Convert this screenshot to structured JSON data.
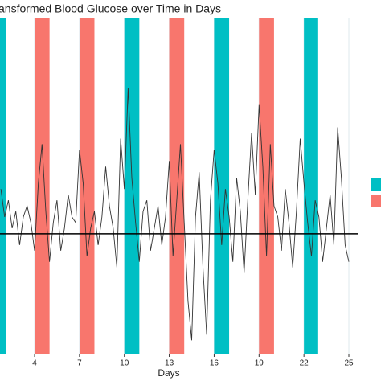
{
  "chart_data": {
    "type": "line",
    "title": "ansformed Blood Glucose over Time in Days",
    "x_label": "Days",
    "xlim": [
      1.69,
      25.59
    ],
    "ylim": [
      -2.14,
      3.86
    ],
    "xticks": [
      4,
      7,
      10,
      13,
      16,
      19,
      22,
      25
    ],
    "grid": true,
    "hline": 0,
    "bands": [
      {
        "start": 1.1,
        "end": 2.1,
        "color": "#00bfc4"
      },
      {
        "start": 4.05,
        "end": 5.0,
        "color": "#f8766d"
      },
      {
        "start": 7.05,
        "end": 8.0,
        "color": "#f8766d"
      },
      {
        "start": 10.0,
        "end": 11.0,
        "color": "#00bfc4"
      },
      {
        "start": 13.0,
        "end": 14.0,
        "color": "#f8766d"
      },
      {
        "start": 16.0,
        "end": 17.0,
        "color": "#00bfc4"
      },
      {
        "start": 19.0,
        "end": 20.0,
        "color": "#f8766d"
      },
      {
        "start": 22.0,
        "end": 22.95,
        "color": "#00bfc4"
      }
    ],
    "legend_colors": [
      "#00bfc4",
      "#f8766d"
    ],
    "series": [
      {
        "color": "#333333",
        "x": [
          1.75,
          2.0,
          2.25,
          2.5,
          2.75,
          3.0,
          3.25,
          3.5,
          3.75,
          4.0,
          4.25,
          4.5,
          4.75,
          5.0,
          5.25,
          5.5,
          5.75,
          6.0,
          6.25,
          6.5,
          6.75,
          7.0,
          7.25,
          7.5,
          7.75,
          8.0,
          8.25,
          8.5,
          8.75,
          9.0,
          9.25,
          9.5,
          9.75,
          10.0,
          10.25,
          10.5,
          10.75,
          11.0,
          11.25,
          11.5,
          11.75,
          12.0,
          12.25,
          12.5,
          12.75,
          13.0,
          13.25,
          13.5,
          13.75,
          14.0,
          14.25,
          14.5,
          14.75,
          15.0,
          15.25,
          15.5,
          15.75,
          16.0,
          16.25,
          16.5,
          16.75,
          17.0,
          17.25,
          17.5,
          17.75,
          18.0,
          18.25,
          18.5,
          18.75,
          19.0,
          19.25,
          19.5,
          19.75,
          20.0,
          20.25,
          20.5,
          20.75,
          21.0,
          21.25,
          21.5,
          21.75,
          22.0,
          22.25,
          22.5,
          22.75,
          23.0,
          23.25,
          23.5,
          23.75,
          24.0,
          24.25,
          24.5,
          24.75,
          25.0
        ],
        "values": [
          0.8,
          0.3,
          0.6,
          0.1,
          0.4,
          -0.2,
          0.3,
          0.5,
          0.2,
          -0.3,
          0.9,
          1.6,
          0.4,
          -0.5,
          0.2,
          0.6,
          -0.3,
          0.1,
          0.7,
          0.3,
          0.2,
          1.5,
          0.9,
          -0.4,
          0.1,
          0.4,
          -0.2,
          0.3,
          1.2,
          0.5,
          0.1,
          -0.6,
          1.7,
          0.8,
          2.6,
          1.0,
          0.2,
          -0.5,
          0.4,
          0.6,
          -0.3,
          0.1,
          0.5,
          -0.2,
          0.3,
          1.3,
          -0.4,
          0.6,
          1.6,
          0.2,
          -1.2,
          -1.9,
          0.3,
          1.1,
          -0.6,
          -1.8,
          0.6,
          1.5,
          0.9,
          -0.2,
          0.8,
          0.3,
          -0.5,
          1.0,
          0.4,
          -0.7,
          0.6,
          1.8,
          0.7,
          2.3,
          1.2,
          -0.4,
          1.6,
          0.5,
          0.3,
          -0.3,
          0.8,
          0.2,
          -0.6,
          0.4,
          1.7,
          0.9,
          0.2,
          -0.4,
          0.6,
          0.3,
          -0.5,
          0.1,
          0.7,
          -0.2,
          1.9,
          1.0,
          -0.2,
          -0.5
        ]
      }
    ]
  }
}
